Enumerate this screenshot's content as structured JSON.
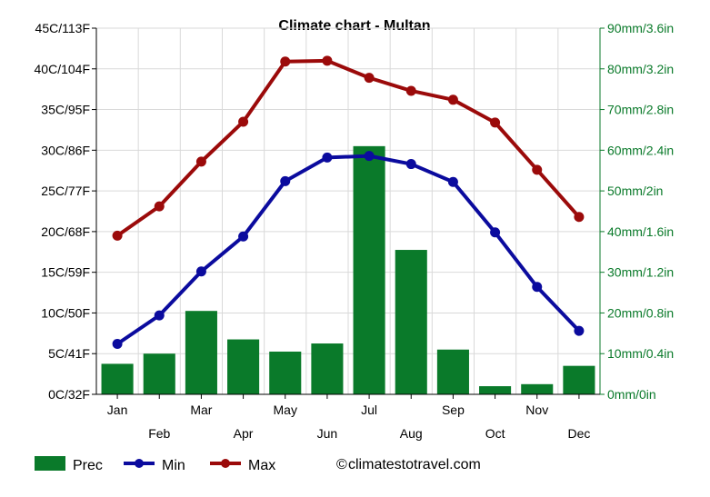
{
  "chart_data": {
    "type": "bar+line",
    "title": "Climate chart - Multan",
    "categories": [
      "Jan",
      "Feb",
      "Mar",
      "Apr",
      "May",
      "Jun",
      "Jul",
      "Aug",
      "Sep",
      "Oct",
      "Nov",
      "Dec"
    ],
    "left_axis": {
      "range": [
        0,
        45
      ],
      "ticks": [
        0,
        5,
        10,
        15,
        20,
        25,
        30,
        35,
        40,
        45
      ],
      "tick_labels": [
        "0C/32F",
        "5C/41F",
        "10C/50F",
        "15C/59F",
        "20C/68F",
        "25C/77F",
        "30C/86F",
        "35C/95F",
        "40C/104F",
        "45C/113F"
      ]
    },
    "right_axis": {
      "range": [
        0,
        90
      ],
      "ticks": [
        0,
        10,
        20,
        30,
        40,
        50,
        60,
        70,
        80,
        90
      ],
      "tick_labels": [
        "0mm/0in",
        "10mm/0.4in",
        "20mm/0.8in",
        "30mm/1.2in",
        "40mm/1.6in",
        "50mm/2in",
        "60mm/2.4in",
        "70mm/2.8in",
        "80mm/3.2in",
        "90mm/3.6in"
      ]
    },
    "series": [
      {
        "name": "Prec",
        "kind": "bar",
        "axis": "right",
        "color": "#0a7a2a",
        "values": [
          7.5,
          10,
          20.5,
          13.5,
          10.5,
          12.5,
          61,
          35.5,
          11,
          2,
          2.5,
          7
        ]
      },
      {
        "name": "Min",
        "kind": "line",
        "axis": "left",
        "color": "#0b0b9e",
        "values": [
          6.2,
          9.7,
          15.1,
          19.4,
          26.2,
          29.1,
          29.3,
          28.3,
          26.1,
          19.9,
          13.2,
          7.8
        ]
      },
      {
        "name": "Max",
        "kind": "line",
        "axis": "left",
        "color": "#9b0a0a",
        "values": [
          19.5,
          23.1,
          28.6,
          33.5,
          40.9,
          41.0,
          38.9,
          37.3,
          36.2,
          33.4,
          27.6,
          21.8
        ]
      }
    ],
    "grid": true,
    "legend_position": "bottom-left",
    "credit": "climatestotravel.com"
  }
}
